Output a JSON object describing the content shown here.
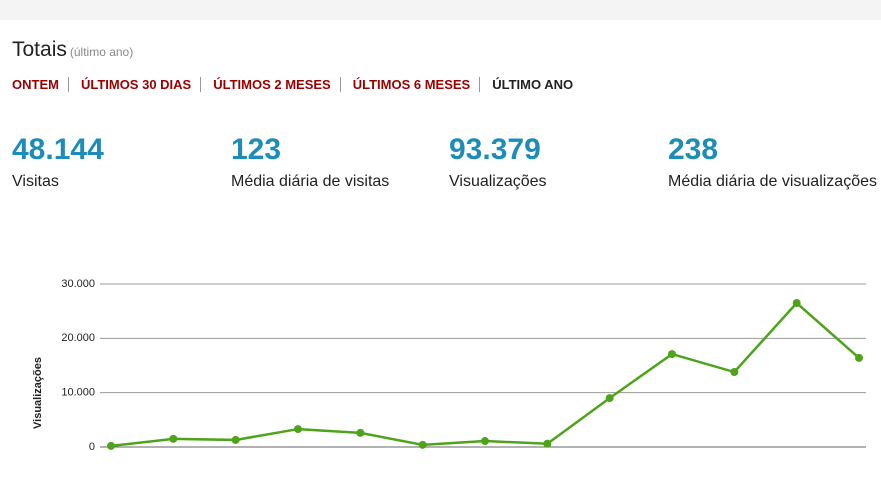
{
  "header": {
    "title": "Totais",
    "subtitle": "(último ano)"
  },
  "tabs": [
    {
      "label": "ONTEM",
      "active": false
    },
    {
      "label": "ÚLTIMOS 30 DIAS",
      "active": false
    },
    {
      "label": "ÚLTIMOS 2 MESES",
      "active": false
    },
    {
      "label": "ÚLTIMOS 6 MESES",
      "active": false
    },
    {
      "label": "ÚLTIMO ANO",
      "active": true
    }
  ],
  "stats": [
    {
      "value": "48.144",
      "label": "Visitas"
    },
    {
      "value": "123",
      "label": "Média diária de visitas"
    },
    {
      "value": "93.379",
      "label": "Visualizações"
    },
    {
      "value": "238",
      "label": "Média diária de visualizações"
    }
  ],
  "chart_data": {
    "type": "line",
    "y_label": "Visualizações",
    "categories": [
      null,
      null,
      null,
      null,
      null,
      null,
      null,
      null,
      null,
      null,
      null,
      null,
      null
    ],
    "series": [
      {
        "name": "Visualizações",
        "color": "#4fa31a",
        "values": [
          200,
          1500,
          1300,
          3300,
          2600,
          400,
          1100,
          600,
          9000,
          17100,
          13800,
          26500,
          16400
        ]
      }
    ],
    "ylim": [
      0,
      30000
    ],
    "yticks": [
      0,
      {
        "value": 10000,
        "label": "10.000"
      },
      {
        "value": 20000,
        "label": "20.000"
      },
      {
        "value": 30000,
        "label": "30.000"
      }
    ],
    "grid": true
  }
}
